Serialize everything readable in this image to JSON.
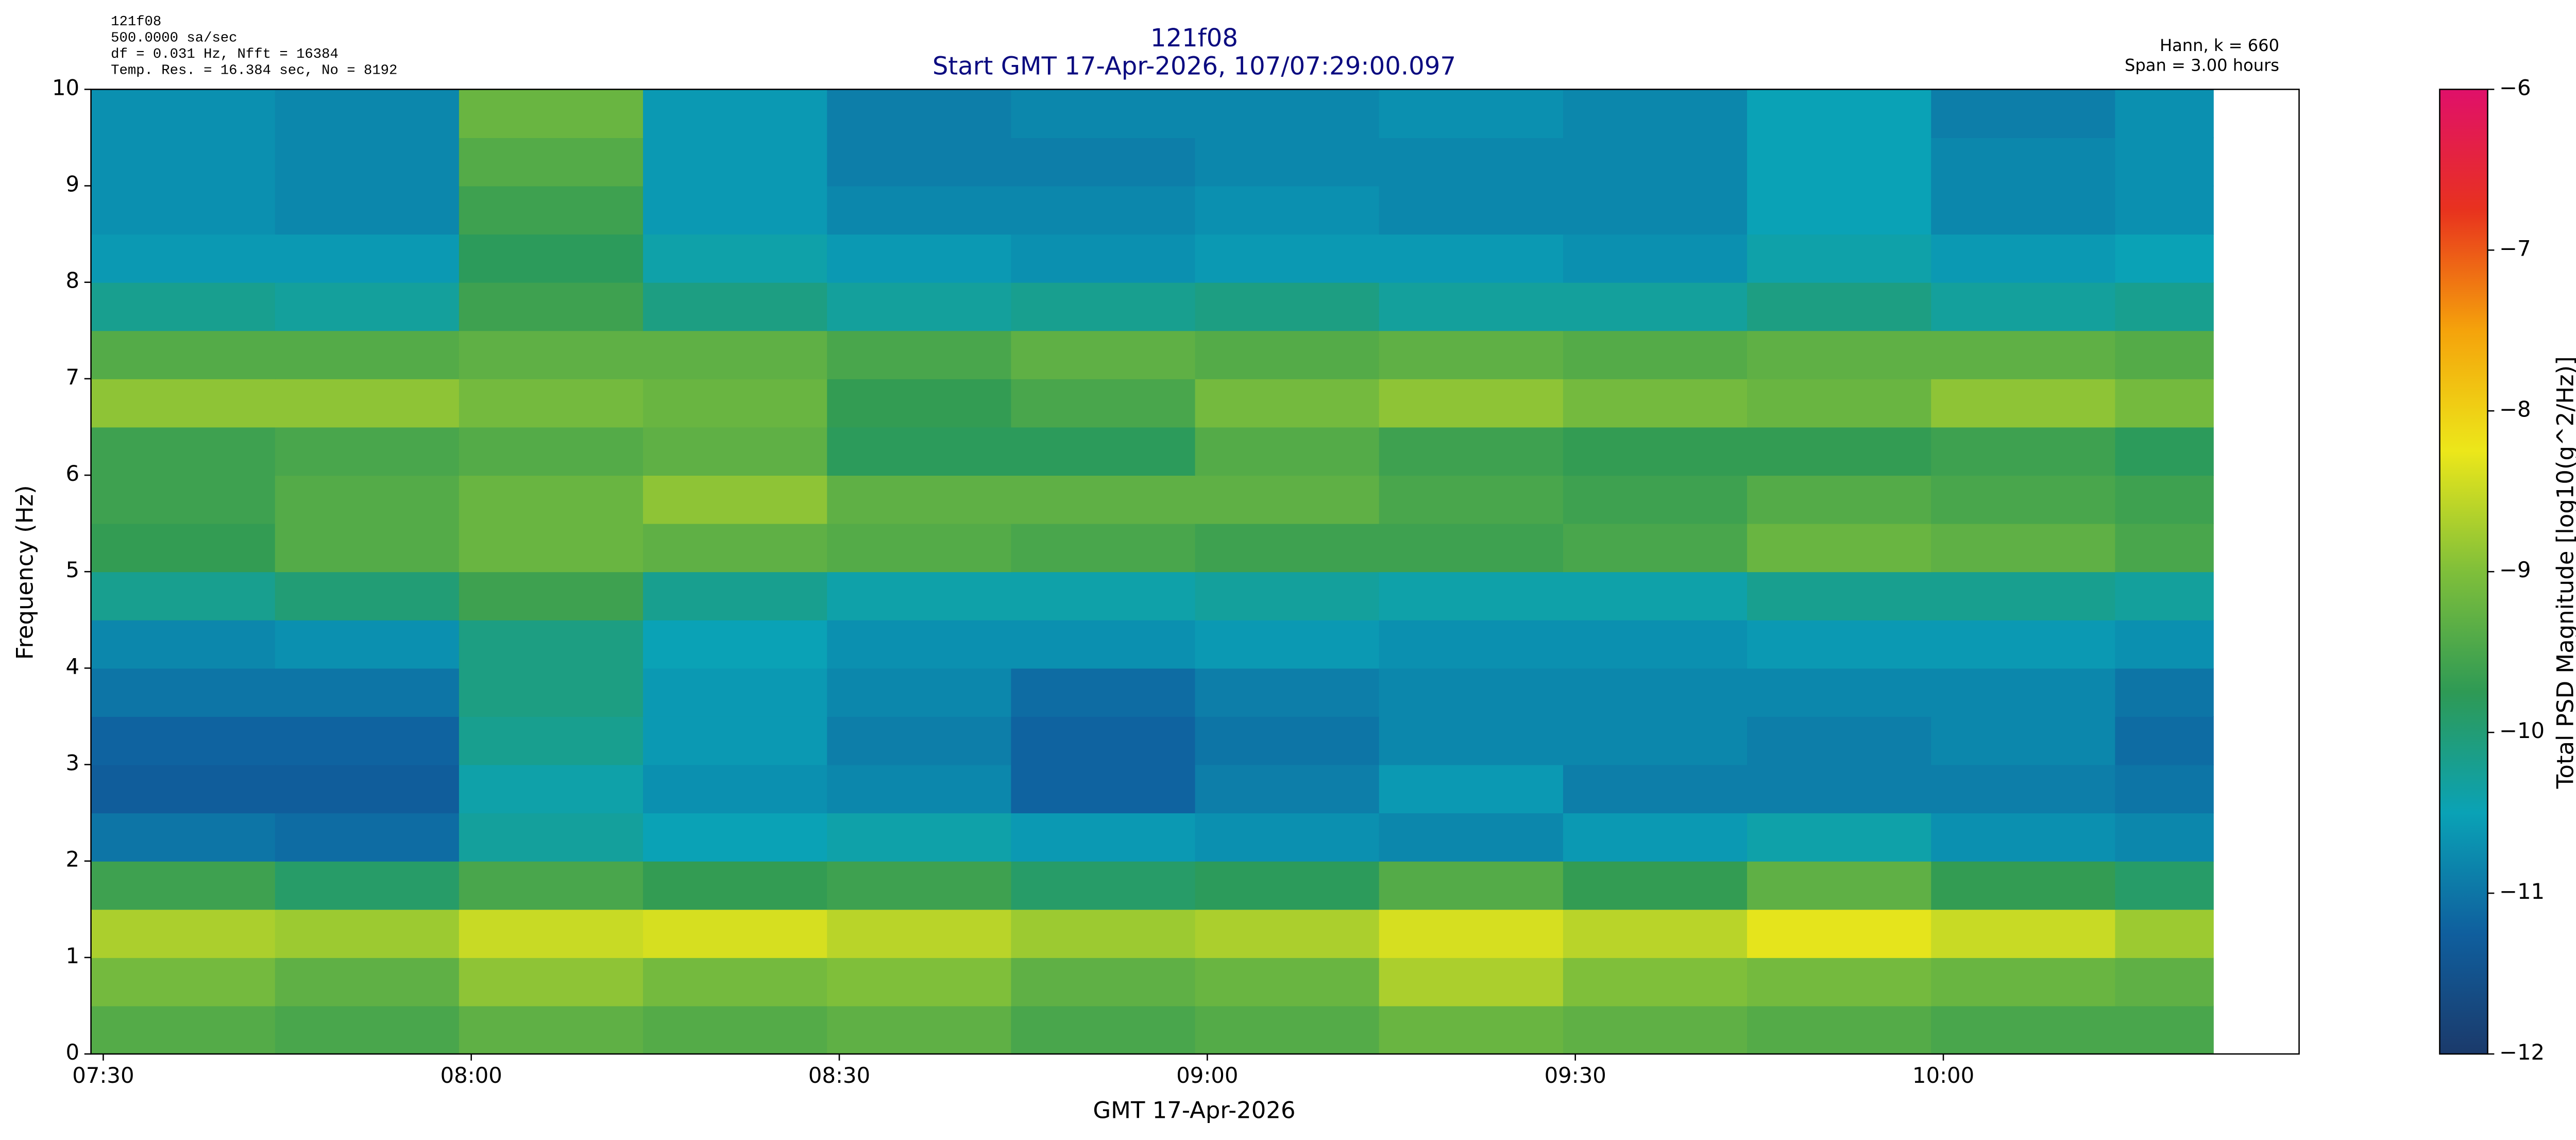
{
  "chart_data": {
    "type": "spectrogram",
    "title": "121f08",
    "subtitle": "Start GMT 17-Apr-2026, 107/07:29:00.097",
    "info_left": [
      "121f08",
      "500.0000 sa/sec",
      "df = 0.031 Hz,  Nfft = 16384",
      "Temp. Res. = 16.384 sec, No = 8192"
    ],
    "info_right": [
      "Hann, k = 660",
      "Span = 3.00 hours"
    ],
    "xlabel": "GMT 17-Apr-2026",
    "ylabel": "Frequency (Hz)",
    "colorbar_label": "Total PSD Magnitude [log10(g^2/Hz)]",
    "xlim": [
      "07:29",
      "10:29"
    ],
    "xticks": [
      "07:30",
      "08:00",
      "08:30",
      "09:00",
      "09:30",
      "10:00"
    ],
    "ylim": [
      0,
      10
    ],
    "yticks": [
      0,
      1,
      2,
      3,
      4,
      5,
      6,
      7,
      8,
      9,
      10
    ],
    "clim": [
      -12,
      -6
    ],
    "cticks": [
      {
        "value": -12,
        "label": "−12"
      },
      {
        "value": -11,
        "label": "−11"
      },
      {
        "value": -10,
        "label": "−10"
      },
      {
        "value": -9,
        "label": "−9"
      },
      {
        "value": -8,
        "label": "−8"
      },
      {
        "value": -7,
        "label": "−7"
      },
      {
        "value": -6,
        "label": "−6"
      }
    ],
    "colormap": [
      "#1b3a6b",
      "#0f5f9e",
      "#0aa2b6",
      "#2e9a55",
      "#7fbf3a",
      "#ece71a",
      "#f5a30b",
      "#e8321e",
      "#e0106a"
    ],
    "xbins": [
      "07:29",
      "07:44",
      "07:59",
      "08:14",
      "08:29",
      "08:44",
      "08:59",
      "09:14",
      "09:29",
      "09:44",
      "09:59",
      "10:14",
      "10:22"
    ],
    "ybins": [
      0,
      0.5,
      1,
      1.5,
      2,
      2.5,
      3,
      3.5,
      4,
      4.5,
      5,
      5.5,
      6,
      6.5,
      7,
      7.5,
      8,
      8.5,
      9,
      9.5,
      10
    ],
    "z": [
      [
        -9.4,
        -9.5,
        -9.3,
        -9.4,
        -9.3,
        -9.5,
        -9.4,
        -9.2,
        -9.3,
        -9.4,
        -9.5,
        -9.5
      ],
      [
        -9.1,
        -9.3,
        -8.9,
        -9.1,
        -9.0,
        -9.3,
        -9.2,
        -8.7,
        -9.0,
        -9.1,
        -9.2,
        -9.3
      ],
      [
        -8.7,
        -8.8,
        -8.5,
        -8.4,
        -8.6,
        -8.8,
        -8.7,
        -8.4,
        -8.6,
        -8.3,
        -8.5,
        -8.8
      ],
      [
        -9.6,
        -9.9,
        -9.5,
        -9.7,
        -9.6,
        -9.9,
        -9.8,
        -9.4,
        -9.7,
        -9.3,
        -9.7,
        -9.9
      ],
      [
        -11.0,
        -11.1,
        -10.3,
        -10.5,
        -10.4,
        -10.6,
        -10.7,
        -10.8,
        -10.6,
        -10.4,
        -10.7,
        -10.8
      ],
      [
        -11.3,
        -11.3,
        -10.4,
        -10.7,
        -10.8,
        -11.2,
        -10.9,
        -10.6,
        -10.9,
        -10.9,
        -10.9,
        -11.0
      ],
      [
        -11.2,
        -11.2,
        -10.2,
        -10.6,
        -10.9,
        -11.2,
        -11.0,
        -10.8,
        -10.8,
        -10.9,
        -10.8,
        -11.1
      ],
      [
        -11.0,
        -11.0,
        -10.1,
        -10.6,
        -10.8,
        -11.1,
        -10.9,
        -10.8,
        -10.8,
        -10.8,
        -10.8,
        -11.0
      ],
      [
        -10.8,
        -10.7,
        -10.1,
        -10.5,
        -10.7,
        -10.7,
        -10.6,
        -10.7,
        -10.7,
        -10.6,
        -10.6,
        -10.7
      ],
      [
        -10.2,
        -10.0,
        -9.6,
        -10.2,
        -10.4,
        -10.4,
        -10.3,
        -10.4,
        -10.4,
        -10.2,
        -10.2,
        -10.3
      ],
      [
        -9.7,
        -9.4,
        -9.2,
        -9.3,
        -9.4,
        -9.5,
        -9.6,
        -9.6,
        -9.5,
        -9.2,
        -9.3,
        -9.5
      ],
      [
        -9.6,
        -9.4,
        -9.2,
        -8.9,
        -9.3,
        -9.3,
        -9.3,
        -9.5,
        -9.6,
        -9.4,
        -9.5,
        -9.6
      ],
      [
        -9.6,
        -9.5,
        -9.4,
        -9.3,
        -9.8,
        -9.8,
        -9.4,
        -9.6,
        -9.7,
        -9.7,
        -9.6,
        -9.8
      ],
      [
        -8.9,
        -8.9,
        -9.1,
        -9.2,
        -9.7,
        -9.5,
        -9.1,
        -8.9,
        -9.1,
        -9.2,
        -8.9,
        -9.1
      ],
      [
        -9.4,
        -9.4,
        -9.3,
        -9.3,
        -9.5,
        -9.3,
        -9.4,
        -9.3,
        -9.4,
        -9.3,
        -9.3,
        -9.4
      ],
      [
        -10.2,
        -10.3,
        -9.6,
        -10.1,
        -10.3,
        -10.2,
        -10.1,
        -10.3,
        -10.3,
        -10.1,
        -10.3,
        -10.2
      ],
      [
        -10.6,
        -10.6,
        -9.8,
        -10.4,
        -10.6,
        -10.7,
        -10.6,
        -10.6,
        -10.7,
        -10.4,
        -10.6,
        -10.5
      ],
      [
        -10.7,
        -10.8,
        -9.6,
        -10.6,
        -10.8,
        -10.8,
        -10.7,
        -10.8,
        -10.8,
        -10.5,
        -10.8,
        -10.7
      ],
      [
        -10.7,
        -10.8,
        -9.4,
        -10.6,
        -10.9,
        -10.9,
        -10.8,
        -10.8,
        -10.8,
        -10.5,
        -10.8,
        -10.7
      ],
      [
        -10.7,
        -10.8,
        -9.2,
        -10.6,
        -10.9,
        -10.8,
        -10.8,
        -10.7,
        -10.8,
        -10.5,
        -10.9,
        -10.7
      ]
    ]
  }
}
